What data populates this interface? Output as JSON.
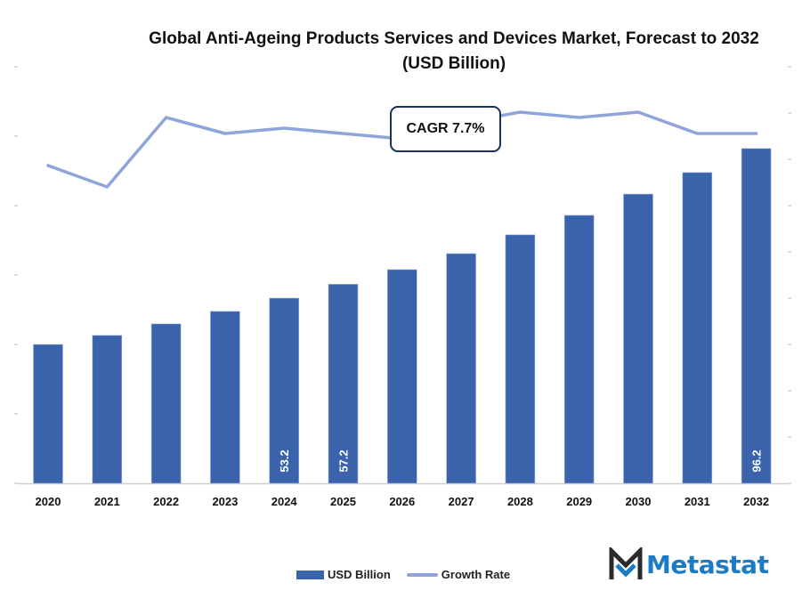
{
  "chart_data": {
    "type": "bar",
    "title": "Global Anti-Ageing Products Services and Devices Market, Forecast to 2032 (USD Billion)",
    "xlabel": "",
    "ylabel": "",
    "categories": [
      "2020",
      "2021",
      "2022",
      "2023",
      "2024",
      "2025",
      "2026",
      "2027",
      "2028",
      "2029",
      "2030",
      "2031",
      "2032"
    ],
    "series": [
      {
        "name": "USD Billion",
        "type": "bar",
        "color": "#3b63ac",
        "axis": "left",
        "values": [
          39.9,
          42.5,
          45.8,
          49.4,
          53.2,
          57.2,
          61.4,
          66.0,
          71.4,
          77.0,
          83.1,
          89.3,
          96.2
        ],
        "data_labels": {
          "2024": "53.2",
          "2025": "57.2",
          "2032": "96.2"
        }
      },
      {
        "name": "Growth Rate",
        "type": "line",
        "color": "#8fa5d9",
        "axis": "right",
        "values": [
          6.9,
          6.5,
          7.8,
          7.5,
          7.6,
          7.5,
          7.4,
          7.7,
          7.9,
          7.8,
          7.9,
          7.5,
          7.5
        ]
      }
    ],
    "ylim": [
      0,
      120
    ],
    "y2lim": [
      0,
      9
    ],
    "grid": false,
    "legend": "bottom-center",
    "annotation": "CAGR 7.7%"
  },
  "legend": {
    "bar_label": "USD Billion",
    "line_label": "Growth Rate"
  },
  "brand": {
    "name": "Metastat",
    "color": "#1b7bc4"
  }
}
